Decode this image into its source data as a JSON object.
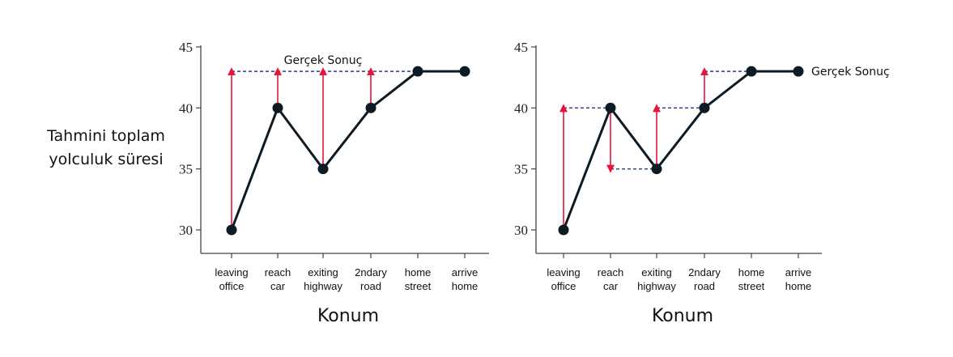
{
  "chart_data": [
    {
      "type": "line",
      "categories": [
        "leaving office",
        "reach car",
        "exiting highway",
        "2ndary road",
        "home street",
        "arrive home"
      ],
      "category_lines": [
        [
          "leaving",
          "office"
        ],
        [
          "reach",
          "car"
        ],
        [
          "exiting",
          "highway"
        ],
        [
          "2ndary",
          "road"
        ],
        [
          "home",
          "street"
        ],
        [
          "arrive",
          "home"
        ]
      ],
      "values": [
        30,
        40,
        35,
        40,
        43,
        43
      ],
      "ylim": [
        30,
        45
      ],
      "yticks": [
        30,
        35,
        40,
        45
      ],
      "ylabel": [
        "Tahmini toplam",
        "yolculuk süresi"
      ],
      "xlabel": "Konum",
      "annotation": "Gerçek Sonuç",
      "target_line": 43,
      "arrows": [
        {
          "at": 0,
          "from": 30,
          "to": 43
        },
        {
          "at": 1,
          "from": 40,
          "to": 43
        },
        {
          "at": 2,
          "from": 35,
          "to": 43
        },
        {
          "at": 3,
          "from": 40,
          "to": 43
        }
      ],
      "dashed_segments": [
        {
          "from_index": 0,
          "to_index": 5,
          "value": 43
        }
      ],
      "colors": {
        "line": "#0d1b24",
        "arrow": "#e8143c",
        "dashed": "#2a3a8a"
      }
    },
    {
      "type": "line",
      "categories": [
        "leaving office",
        "reach car",
        "exiting highway",
        "2ndary road",
        "home street",
        "arrive home"
      ],
      "category_lines": [
        [
          "leaving",
          "office"
        ],
        [
          "reach",
          "car"
        ],
        [
          "exiting",
          "highway"
        ],
        [
          "2ndary",
          "road"
        ],
        [
          "home",
          "street"
        ],
        [
          "arrive",
          "home"
        ]
      ],
      "values": [
        30,
        40,
        35,
        40,
        43,
        43
      ],
      "ylim": [
        30,
        45
      ],
      "yticks": [
        30,
        35,
        40,
        45
      ],
      "xlabel": "Konum",
      "annotation": "Gerçek Sonuç",
      "arrows": [
        {
          "at": 0,
          "from": 30,
          "to": 40
        },
        {
          "at": 1,
          "from": 40,
          "to": 35
        },
        {
          "at": 2,
          "from": 35,
          "to": 40
        },
        {
          "at": 3,
          "from": 40,
          "to": 43
        }
      ],
      "dashed_segments": [
        {
          "from_index": 0,
          "to_index": 1,
          "value": 40
        },
        {
          "from_index": 1,
          "to_index": 2,
          "value": 35
        },
        {
          "from_index": 2,
          "to_index": 3,
          "value": 40
        },
        {
          "from_index": 3,
          "to_index": 5,
          "value": 43
        }
      ],
      "colors": {
        "line": "#0d1b24",
        "arrow": "#e8143c",
        "dashed": "#2a3a8a"
      }
    }
  ]
}
